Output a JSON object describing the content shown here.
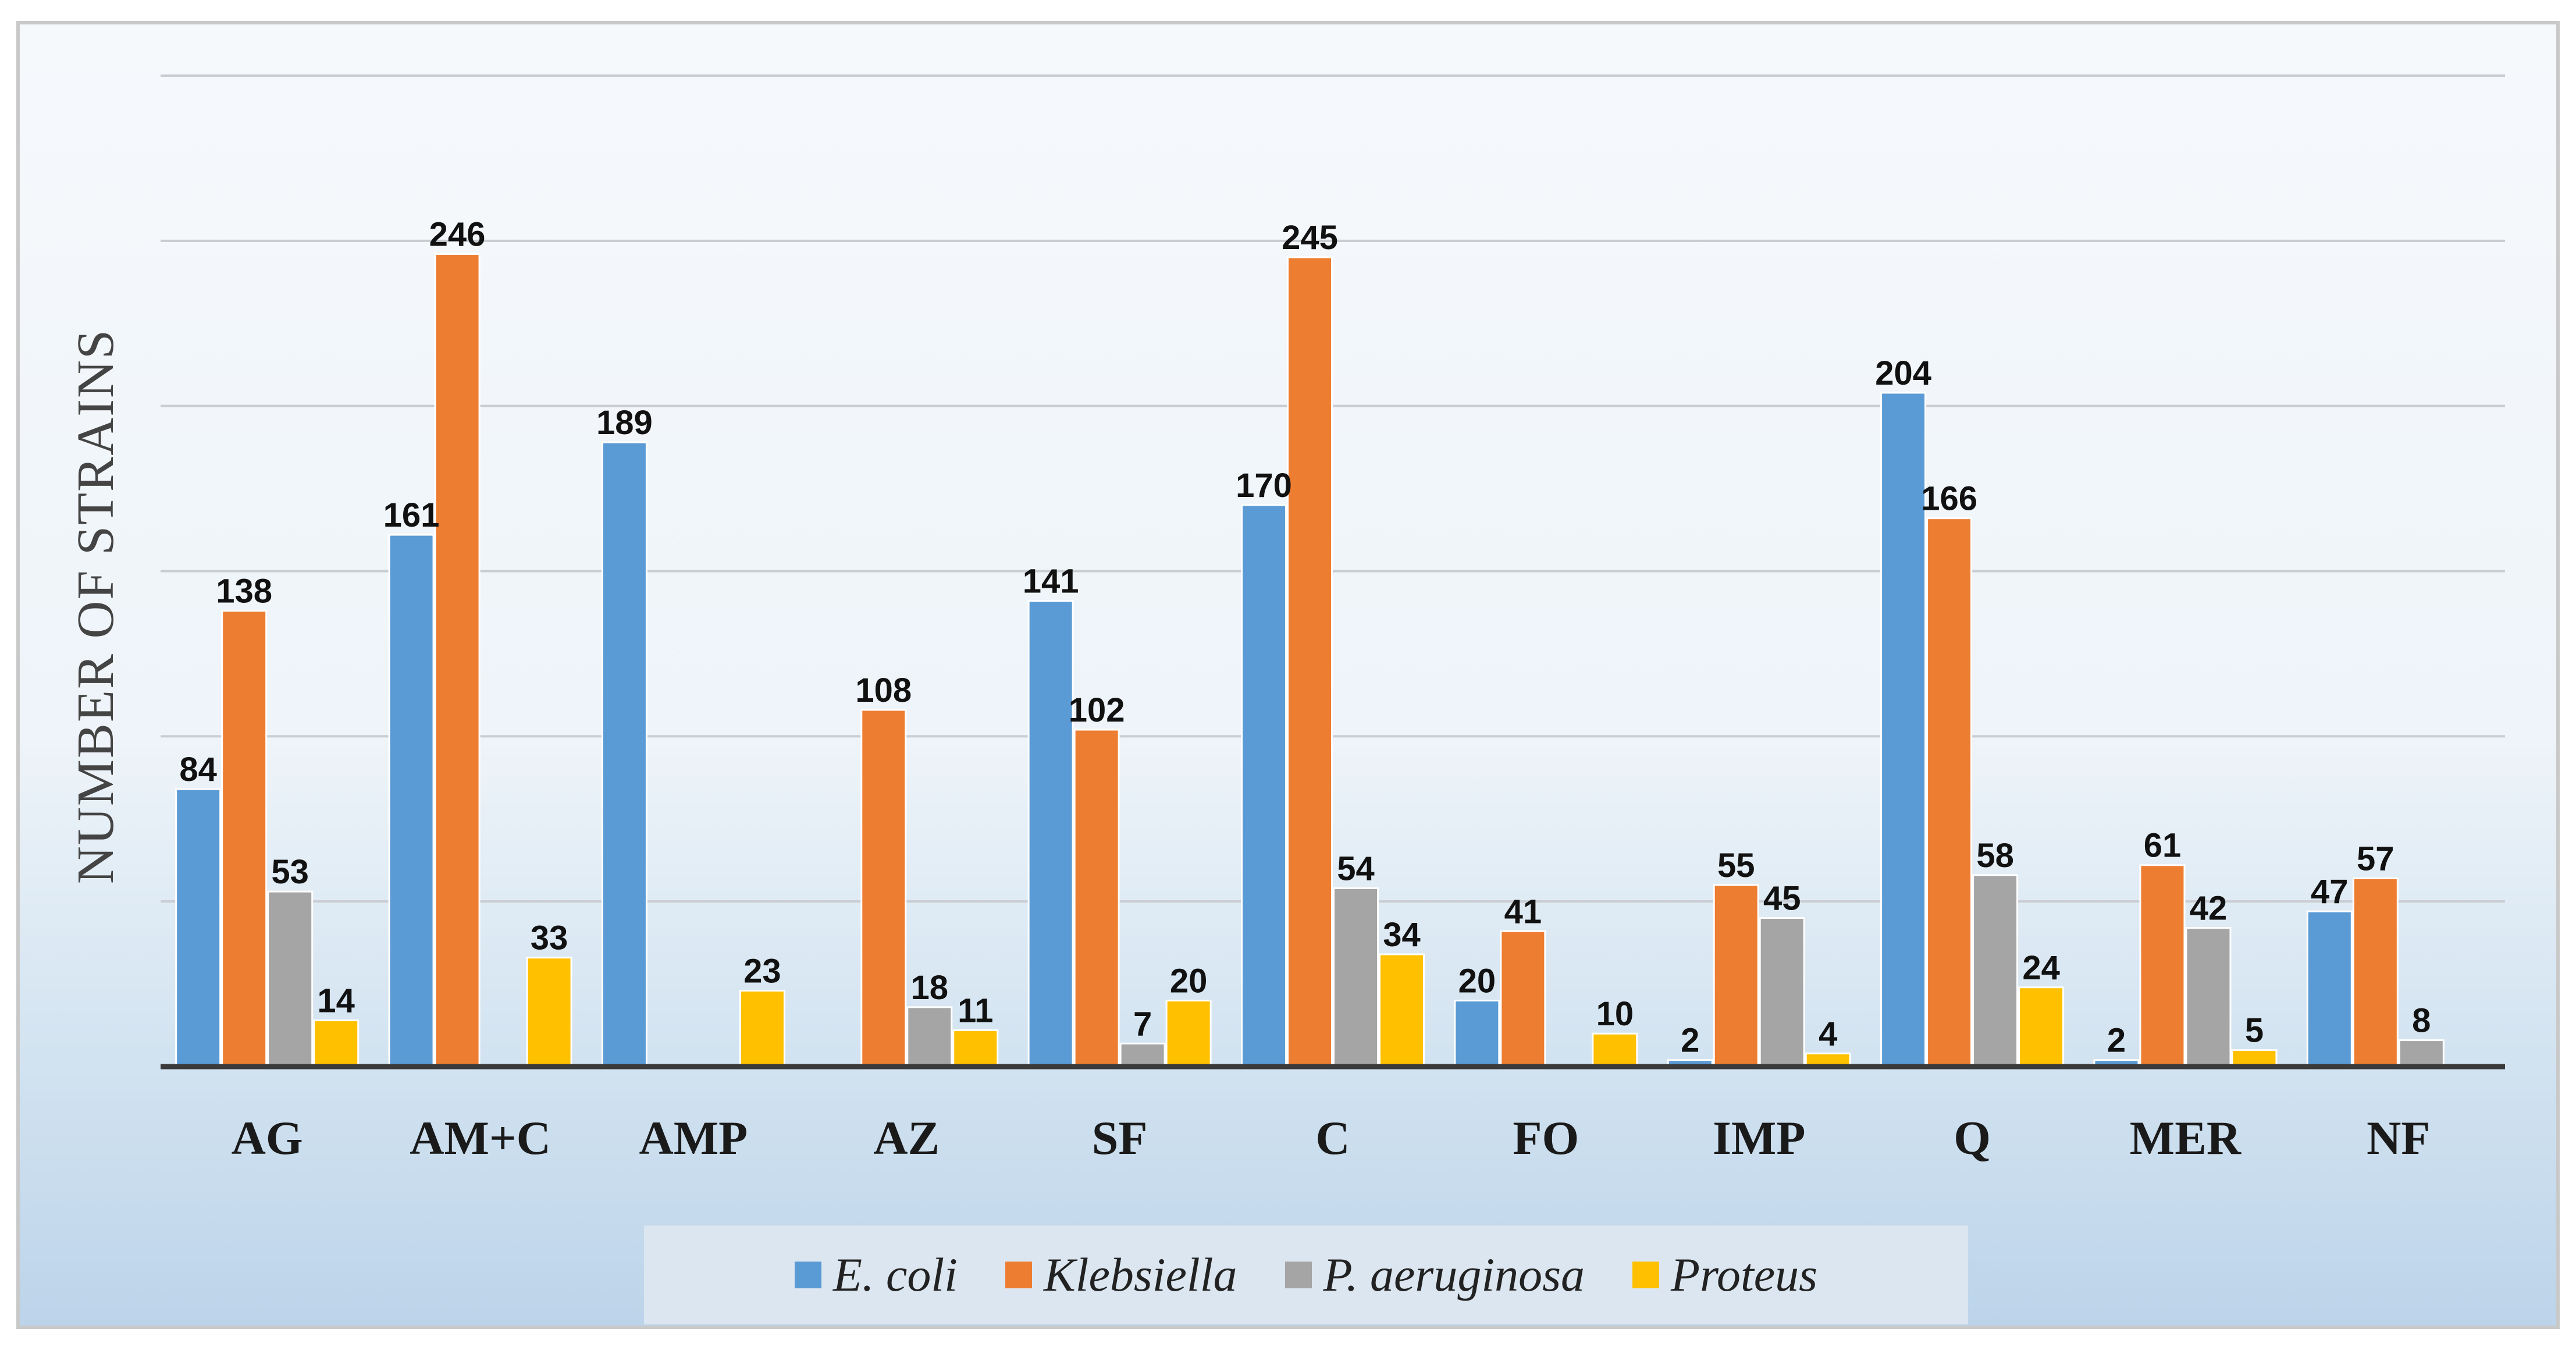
{
  "chart_data": {
    "type": "bar",
    "title": "",
    "xlabel": "",
    "ylabel": "NUMBER OF STRAINS",
    "ylim": [
      0,
      300
    ],
    "gridline_step": 50,
    "categories": [
      "AG",
      "AM+C",
      "AMP",
      "AZ",
      "SF",
      "C",
      "FO",
      "IMP",
      "Q",
      "MER",
      "NF"
    ],
    "series": [
      {
        "name": "E. coli",
        "color": "#5b9bd5",
        "values": [
          84,
          161,
          189,
          null,
          141,
          170,
          20,
          2,
          204,
          2,
          47
        ]
      },
      {
        "name": "Klebsiella",
        "color": "#ed7d31",
        "values": [
          138,
          246,
          null,
          108,
          102,
          245,
          41,
          55,
          166,
          61,
          57
        ]
      },
      {
        "name": "P. aeruginosa",
        "color": "#a5a5a5",
        "values": [
          53,
          null,
          null,
          18,
          7,
          54,
          null,
          45,
          58,
          42,
          8
        ]
      },
      {
        "name": "Proteus",
        "color": "#ffc000",
        "values": [
          14,
          33,
          23,
          11,
          20,
          34,
          10,
          4,
          24,
          5,
          null
        ]
      }
    ],
    "legend_position": "bottom",
    "grid": true
  }
}
